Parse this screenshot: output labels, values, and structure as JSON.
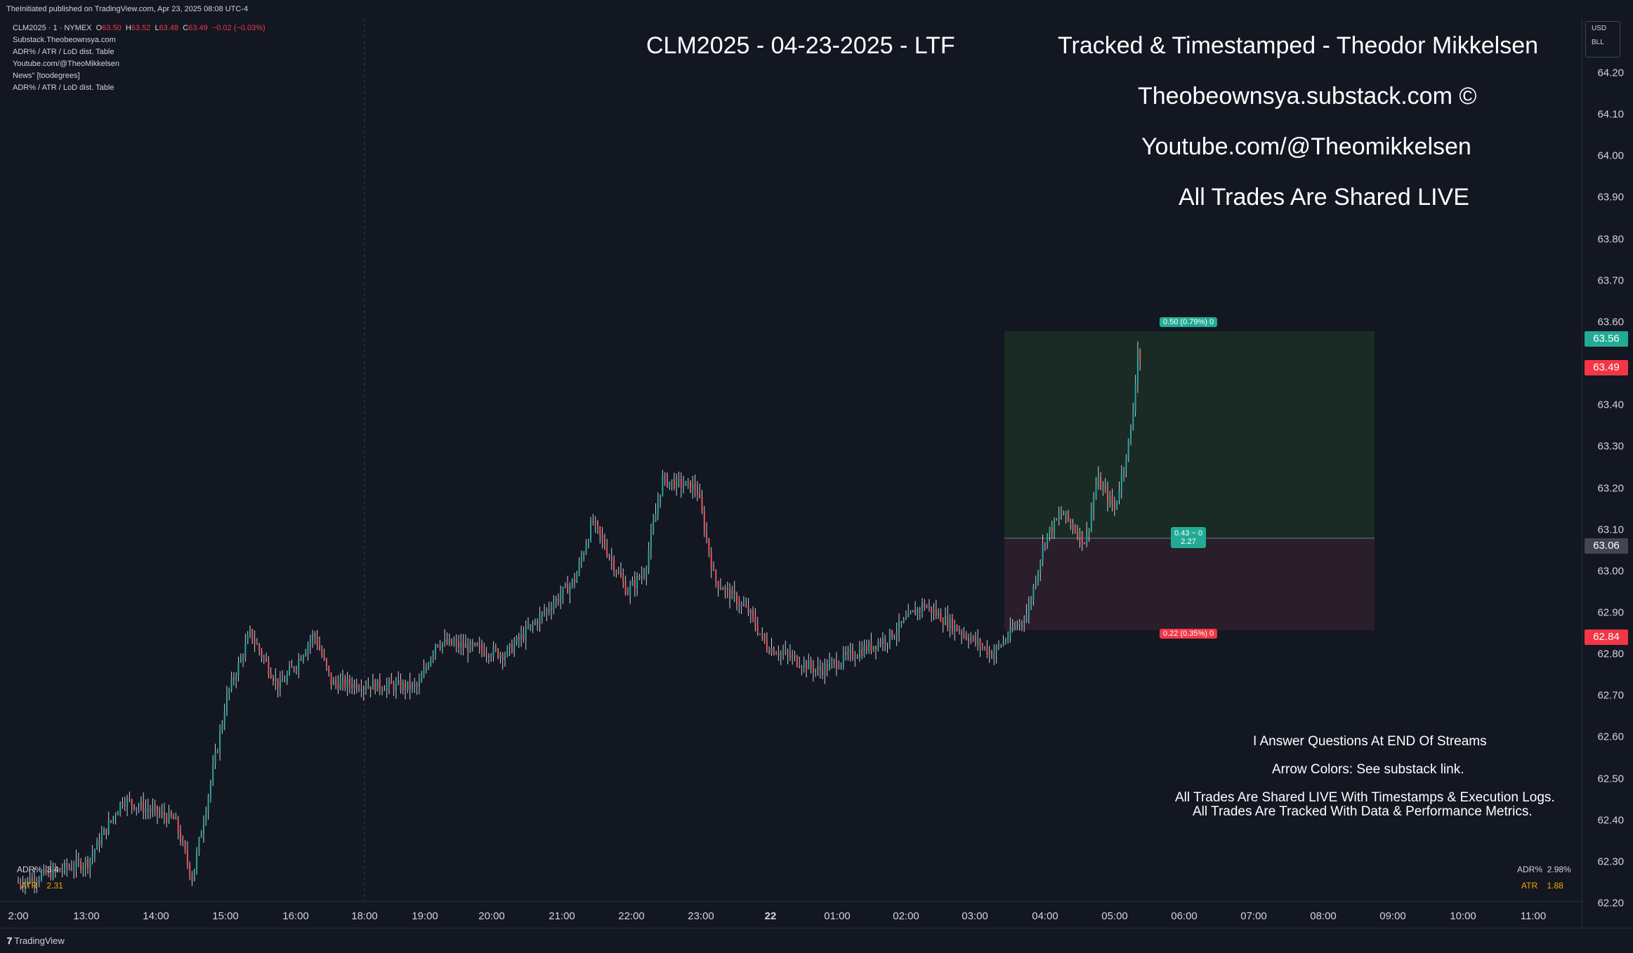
{
  "header": {
    "published": "TheInitiated published on TradingView.com, Apr 23, 2025 08:08 UTC-4"
  },
  "legend": {
    "symbol": "CLM2025 · 1 · NYMEX",
    "o_key": "O",
    "o_val": "63.50",
    "h_key": "H",
    "h_val": "63.52",
    "l_key": "L",
    "l_val": "63.48",
    "c_key": "C",
    "c_val": "63.49",
    "change": "−0.02 (−0.03%)",
    "lines": [
      "Substack.Theobeownsya.com",
      "ADR% / ATR / LoD dist. Table",
      "Youtube.com/@TheoMikkelsen",
      "News\" [toodegrees]",
      "ADR% / ATR / LoD dist. Table"
    ]
  },
  "overlay": {
    "title": "CLM2025 - 04-23-2025 - LTF",
    "tracked": "Tracked & Timestamped - Theodor Mikkelsen",
    "substack": "Theobeownsya.substack.com ©",
    "youtube": "Youtube.com/@Theomikkelsen",
    "live": "All Trades Are Shared LIVE",
    "q": "I Answer Questions At END Of Streams",
    "arrows": "Arrow Colors: See substack link.",
    "shared": "All Trades Are Shared LIVE With Timestamps & Execution Logs.",
    "tracked_data": "All Trades Are Tracked With Data & Performance Metrics."
  },
  "position": {
    "target_label": "0.50 (0.79%) 0",
    "entry_label_1": "0.43 ~ 0",
    "entry_label_2": "2.27",
    "stop_label": "0.22 (0.35%) 0",
    "profit_fill": "#1a2a25",
    "loss_fill": "#2a1e2b"
  },
  "stats_left": {
    "adr_key": "ADR%",
    "adr_val": "3.4...",
    "atr_key": "ATR",
    "atr_val": "2.31"
  },
  "stats_right": {
    "adr_key": "ADR%",
    "adr_val": "2.98%",
    "atr_key": "ATR",
    "atr_val": "1.88"
  },
  "price_axis": {
    "currency": "USD",
    "unit": "BLL",
    "ticks": [
      "64.20",
      "64.10",
      "64.00",
      "63.90",
      "63.80",
      "63.70",
      "63.60",
      "63.40",
      "63.30",
      "63.20",
      "63.10",
      "63.00",
      "62.90",
      "62.80",
      "62.70",
      "62.60",
      "62.50",
      "62.40",
      "62.30",
      "62.20"
    ],
    "badges": [
      {
        "value": "63.56",
        "color": "#22ab94"
      },
      {
        "value": "63.49",
        "color": "#f23645"
      },
      {
        "value": "63.06",
        "color": "#434651"
      },
      {
        "value": "62.84",
        "color": "#f23645"
      }
    ]
  },
  "time_axis": {
    "labels": [
      "2:00",
      "13:00",
      "14:00",
      "15:00",
      "16:00",
      "18:00",
      "19:00",
      "20:00",
      "21:00",
      "22:00",
      "23:00",
      "22",
      "01:00",
      "02:00",
      "03:00",
      "04:00",
      "05:00",
      "06:00",
      "07:00",
      "08:00",
      "09:00",
      "10:00",
      "11:00"
    ]
  },
  "footer": {
    "logo_mark": "𝟕",
    "logo_text": "TradingView"
  },
  "colors": {
    "up": "#26a69a",
    "down": "#ef5350",
    "wick": "#c8ccd6"
  },
  "chart_data": {
    "type": "candlestick",
    "price_range": [
      62.2,
      64.25
    ],
    "key_prices": [
      {
        "t": "12:00",
        "p": 62.25
      },
      {
        "t": "13:00",
        "p": 62.3
      },
      {
        "t": "13:30",
        "p": 62.45
      },
      {
        "t": "14:15",
        "p": 62.4
      },
      {
        "t": "14:30",
        "p": 62.26
      },
      {
        "t": "15:00",
        "p": 62.7
      },
      {
        "t": "15:20",
        "p": 62.85
      },
      {
        "t": "15:45",
        "p": 62.72
      },
      {
        "t": "16:00",
        "p": 62.78
      },
      {
        "t": "16:15",
        "p": 62.85
      },
      {
        "t": "16:30",
        "p": 62.73
      },
      {
        "t": "17:45",
        "p": 62.72
      },
      {
        "t": "18:00",
        "p": 62.83
      },
      {
        "t": "19:00",
        "p": 62.8
      },
      {
        "t": "20:00",
        "p": 62.98
      },
      {
        "t": "20:15",
        "p": 63.12
      },
      {
        "t": "20:45",
        "p": 62.95
      },
      {
        "t": "21:00",
        "p": 63.0
      },
      {
        "t": "21:15",
        "p": 63.22
      },
      {
        "t": "21:45",
        "p": 63.2
      },
      {
        "t": "22:00",
        "p": 62.98
      },
      {
        "t": "22:30",
        "p": 62.9
      },
      {
        "t": "22:45",
        "p": 62.82
      },
      {
        "t": "23:30",
        "p": 62.76
      },
      {
        "t": "00:30",
        "p": 62.84
      },
      {
        "t": "01:00",
        "p": 62.92
      },
      {
        "t": "01:30",
        "p": 62.86
      },
      {
        "t": "02:00",
        "p": 62.8
      },
      {
        "t": "02:30",
        "p": 62.9
      },
      {
        "t": "02:45",
        "p": 63.08
      },
      {
        "t": "03:00",
        "p": 63.14
      },
      {
        "t": "03:20",
        "p": 63.07
      },
      {
        "t": "03:30",
        "p": 63.22
      },
      {
        "t": "03:45",
        "p": 63.15
      },
      {
        "t": "04:00",
        "p": 63.35
      },
      {
        "t": "04:05",
        "p": 63.54
      },
      {
        "t": "04:08",
        "p": 63.49
      }
    ]
  }
}
